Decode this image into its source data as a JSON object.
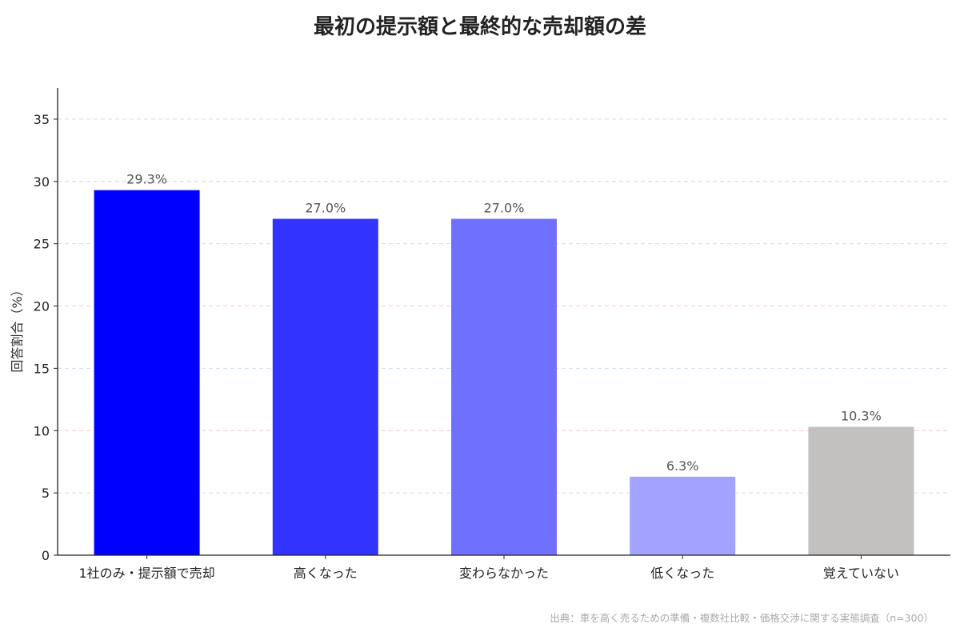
{
  "chart_data": {
    "type": "bar",
    "title": "最初の提示額と最終的な売却額の差",
    "ylabel": "回答割合（%）",
    "xlabel": "",
    "categories": [
      "1社のみ・提示額で売却",
      "高くなった",
      "変わらなかった",
      "低くなった",
      "覚えていない"
    ],
    "values": [
      29.3,
      27.0,
      27.0,
      6.3,
      10.3
    ],
    "value_labels": [
      "29.3%",
      "27.0%",
      "27.0%",
      "6.3%",
      "10.3%"
    ],
    "bar_colors": [
      "#0000ff",
      "#3333ff",
      "#7070ff",
      "#a3a3ff",
      "#c3c0c0"
    ],
    "ylim": [
      0,
      37.5
    ],
    "yticks": [
      0,
      5,
      10,
      15,
      20,
      25,
      30,
      35
    ],
    "grid": true,
    "grid_colors": [
      "#f2c9d4",
      "#cfd9f2"
    ],
    "legend": "none",
    "source": "出典：車を高く売るための準備・複数社比較・価格交渉に関する実態調査（n=300）"
  }
}
